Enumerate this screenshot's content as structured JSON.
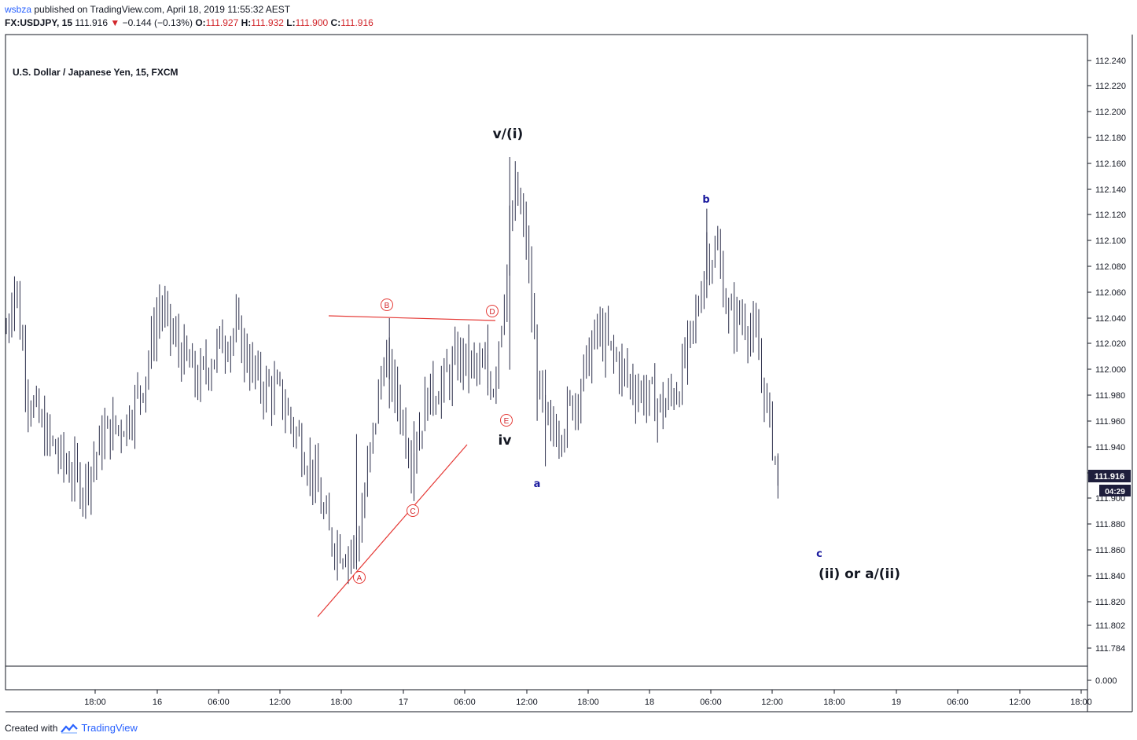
{
  "header": {
    "user": "wsbza",
    "published": "published on TradingView.com, April 18, 2019 11:55:32 AEST",
    "symbol_line": "FX:USDJPY, 15",
    "last": "111.916",
    "change": "−0.144 (−0.13%)",
    "open_label": "O:",
    "open": "111.927",
    "high_label": "H:",
    "high": "111.932",
    "low_label": "L:",
    "low": "111.900",
    "close_label": "C:",
    "close": "111.916"
  },
  "footer": {
    "created_with": "Created with",
    "brand": "TradingView"
  },
  "colors": {
    "bars": "#2b2e4a",
    "trendline": "#e53935",
    "blue_label": "#1a1a9e",
    "price_tag": "#1e1e3c"
  },
  "chart_data": {
    "type": "ohlc-bar",
    "title": "U.S. Dollar / Japanese Yen, 15, FXCM",
    "y_ticks": [
      "112.240",
      "112.220",
      "112.200",
      "112.180",
      "112.160",
      "112.140",
      "112.120",
      "112.100",
      "112.080",
      "112.060",
      "112.040",
      "112.020",
      "112.000",
      "111.980",
      "111.960",
      "111.940",
      "111.920",
      "111.900",
      "111.880",
      "111.860",
      "111.840",
      "111.820",
      "111.802",
      "111.784"
    ],
    "volume_tick": "0.000",
    "x_ticks": [
      "18:00",
      "16",
      "06:00",
      "12:00",
      "18:00",
      "17",
      "06:00",
      "12:00",
      "18:00",
      "18",
      "06:00",
      "12:00",
      "18:00",
      "19",
      "06:00",
      "12:00",
      "18:00"
    ],
    "last_price": "111.916",
    "countdown": "04:29",
    "ylim": [
      111.77,
      112.245
    ],
    "price_path": [
      {
        "t": 0,
        "p": 112.03
      },
      {
        "t": 3,
        "p": 112.07
      },
      {
        "t": 8,
        "p": 111.98
      },
      {
        "t": 14,
        "p": 111.95
      },
      {
        "t": 20,
        "p": 111.93
      },
      {
        "t": 28,
        "p": 111.91
      },
      {
        "t": 36,
        "p": 111.95
      },
      {
        "t": 44,
        "p": 111.96
      },
      {
        "t": 50,
        "p": 111.99
      },
      {
        "t": 56,
        "p": 112.05
      },
      {
        "t": 62,
        "p": 112.02
      },
      {
        "t": 70,
        "p": 111.99
      },
      {
        "t": 78,
        "p": 112.02
      },
      {
        "t": 84,
        "p": 112.03
      },
      {
        "t": 92,
        "p": 111.99
      },
      {
        "t": 100,
        "p": 111.98
      },
      {
        "t": 106,
        "p": 111.95
      },
      {
        "t": 112,
        "p": 111.92
      },
      {
        "t": 118,
        "p": 111.87
      },
      {
        "t": 124,
        "p": 111.86
      },
      {
        "t": 128,
        "p": 111.86
      },
      {
        "t": 134,
        "p": 111.95
      },
      {
        "t": 138,
        "p": 112.01
      },
      {
        "t": 144,
        "p": 111.97
      },
      {
        "t": 148,
        "p": 111.93
      },
      {
        "t": 154,
        "p": 111.98
      },
      {
        "t": 160,
        "p": 111.99
      },
      {
        "t": 166,
        "p": 112.01
      },
      {
        "t": 172,
        "p": 112.0
      },
      {
        "t": 178,
        "p": 111.99
      },
      {
        "t": 182,
        "p": 112.06
      },
      {
        "t": 186,
        "p": 112.14
      },
      {
        "t": 190,
        "p": 112.1
      },
      {
        "t": 194,
        "p": 111.99
      },
      {
        "t": 198,
        "p": 111.95
      },
      {
        "t": 204,
        "p": 111.96
      },
      {
        "t": 210,
        "p": 111.99
      },
      {
        "t": 216,
        "p": 112.03
      },
      {
        "t": 222,
        "p": 112.01
      },
      {
        "t": 228,
        "p": 111.99
      },
      {
        "t": 234,
        "p": 111.98
      },
      {
        "t": 240,
        "p": 111.97
      },
      {
        "t": 246,
        "p": 111.99
      },
      {
        "t": 252,
        "p": 112.04
      },
      {
        "t": 256,
        "p": 112.09
      },
      {
        "t": 260,
        "p": 112.09
      },
      {
        "t": 264,
        "p": 112.04
      },
      {
        "t": 270,
        "p": 112.04
      },
      {
        "t": 274,
        "p": 112.02
      },
      {
        "t": 278,
        "p": 111.97
      },
      {
        "t": 282,
        "p": 111.92
      }
    ],
    "wave_labels": [
      "v/(i)",
      "iv",
      "(ii) or a/(ii)"
    ],
    "sub_wave_labels": [
      "a",
      "b",
      "c"
    ],
    "triangle_points": [
      "A",
      "B",
      "C",
      "D",
      "E"
    ]
  }
}
